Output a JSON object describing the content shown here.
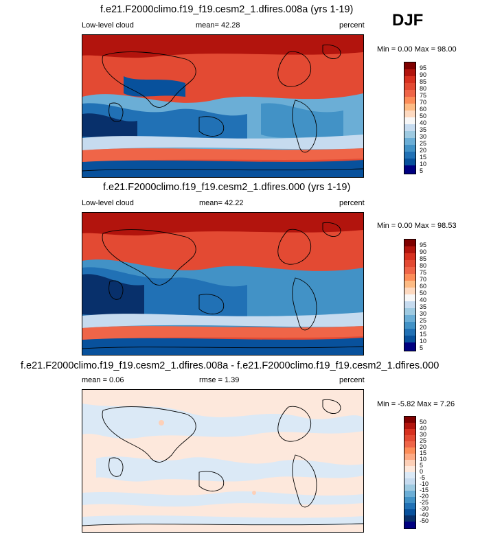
{
  "season_label": "DJF",
  "panels": [
    {
      "title": "f.e21.F2000climo.f19_f19.cesm2_1.dfires.008a (yrs 1-19)",
      "left_label": "Low-level cloud",
      "center_label": "mean=  42.28",
      "right_label": "percent",
      "minmax": "Min =   0.00 Max =  98.00",
      "levels": [
        "95",
        "90",
        "85",
        "80",
        "75",
        "70",
        "60",
        "50",
        "40",
        "35",
        "30",
        "25",
        "20",
        "15",
        "10",
        "5"
      ]
    },
    {
      "title": "f.e21.F2000climo.f19_f19.cesm2_1.dfires.000 (yrs 1-19)",
      "left_label": "Low-level cloud",
      "center_label": "mean=  42.22",
      "right_label": "percent",
      "minmax": "Min =   0.00 Max =  98.53",
      "levels": [
        "95",
        "90",
        "85",
        "80",
        "75",
        "70",
        "60",
        "50",
        "40",
        "35",
        "30",
        "25",
        "20",
        "15",
        "10",
        "5"
      ]
    },
    {
      "title": "f.e21.F2000climo.f19_f19.cesm2_1.dfires.008a - f.e21.F2000climo.f19_f19.cesm2_1.dfires.000",
      "left_label": "mean =   0.06",
      "center_label": "rmse =   1.39",
      "right_label": "percent",
      "minmax": "Min =  -5.82 Max =   7.26",
      "levels": [
        "50",
        "40",
        "30",
        "25",
        "20",
        "15",
        "10",
        "5",
        "0",
        "-5",
        "-10",
        "-15",
        "-20",
        "-25",
        "-30",
        "-40",
        "-50"
      ]
    }
  ],
  "colors": {
    "abs_scale": [
      "#7f0000",
      "#b2140d",
      "#d7301f",
      "#e34a33",
      "#ef6548",
      "#fc8d59",
      "#fdbb84",
      "#fdd9c0",
      "#f7f7f7",
      "#c6dbef",
      "#9ecae1",
      "#6baed6",
      "#4292c6",
      "#2171b5",
      "#08519c",
      "#08306b",
      "#000080"
    ],
    "diff_scale": [
      "#7f0000",
      "#b2140d",
      "#d7301f",
      "#e34a33",
      "#ef6548",
      "#fc8d59",
      "#fdaa84",
      "#fdd0b8",
      "#fde8dc",
      "#dbe9f6",
      "#c6dbef",
      "#9ecae1",
      "#6baed6",
      "#4292c6",
      "#2171b5",
      "#08519c",
      "#08306b",
      "#000080"
    ]
  }
}
